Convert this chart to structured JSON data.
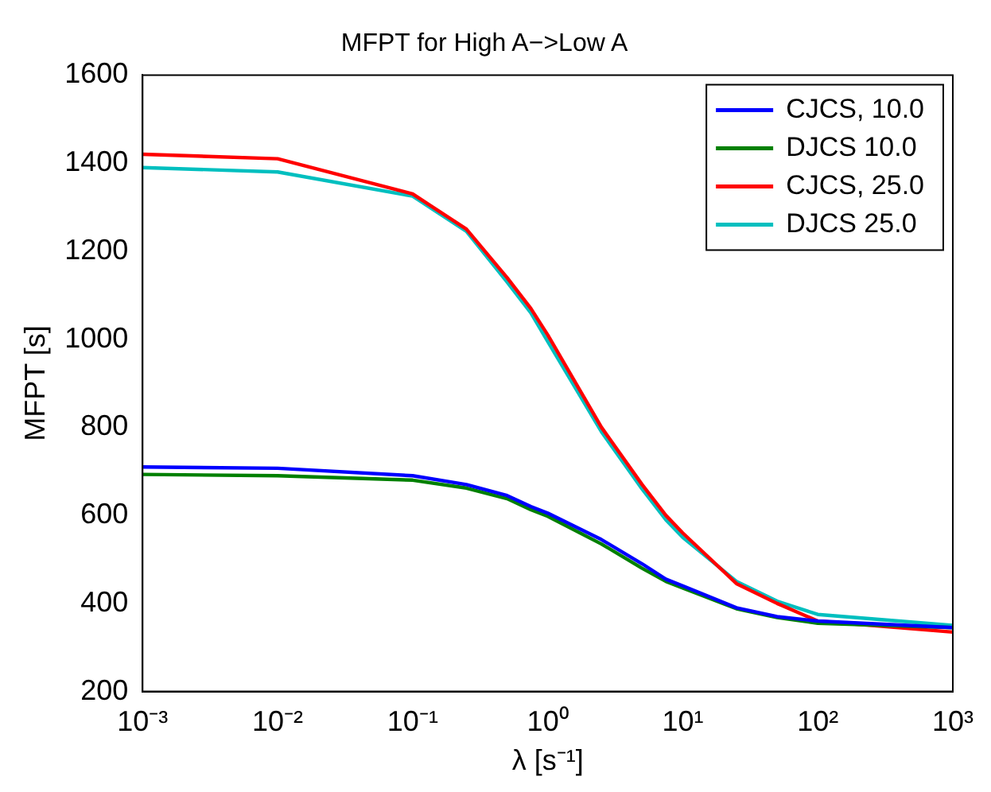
{
  "chart_data": {
    "type": "line",
    "title": "MFPT for High A−>Low A",
    "xlabel": "λ [s⁻¹]",
    "ylabel": "MFPT [s]",
    "x": [
      0.001,
      0.01,
      0.1,
      0.25,
      0.5,
      0.75,
      1,
      2.5,
      5,
      7.5,
      10,
      25,
      50,
      100,
      1000
    ],
    "series": [
      {
        "name": "CJCS, 10.0",
        "color": "#0000ff",
        "values": [
          710,
          707,
          690,
          670,
          645,
          620,
          605,
          545,
          490,
          455,
          440,
          390,
          370,
          360,
          345
        ]
      },
      {
        "name": "DJCS 10.0",
        "color": "#008000",
        "values": [
          693,
          690,
          680,
          662,
          638,
          613,
          598,
          535,
          480,
          450,
          435,
          388,
          368,
          355,
          345
        ]
      },
      {
        "name": "CJCS, 25.0",
        "color": "#ff0000",
        "values": [
          1420,
          1410,
          1330,
          1250,
          1140,
          1070,
          1010,
          800,
          670,
          600,
          560,
          445,
          400,
          360,
          335
        ]
      },
      {
        "name": "DJCS 25.0",
        "color": "#00bfbf",
        "values": [
          1390,
          1380,
          1325,
          1245,
          1130,
          1060,
          995,
          790,
          660,
          590,
          550,
          450,
          405,
          375,
          350
        ]
      }
    ],
    "log": "x",
    "xlim": [
      0.001,
      1000
    ],
    "xticks": [
      {
        "value": 0.001,
        "label": "10⁻³"
      },
      {
        "value": 0.01,
        "label": "10⁻²"
      },
      {
        "value": 0.1,
        "label": "10⁻¹"
      },
      {
        "value": 1,
        "label": "10⁰"
      },
      {
        "value": 10,
        "label": "10¹"
      },
      {
        "value": 100,
        "label": "10²"
      },
      {
        "value": 1000,
        "label": "10³"
      }
    ],
    "ylim": [
      200,
      1600
    ],
    "yticks": [
      200,
      400,
      600,
      800,
      1000,
      1200,
      1400,
      1600
    ],
    "grid": false,
    "legend": "top right",
    "marker": "none",
    "line_style": "solid"
  }
}
